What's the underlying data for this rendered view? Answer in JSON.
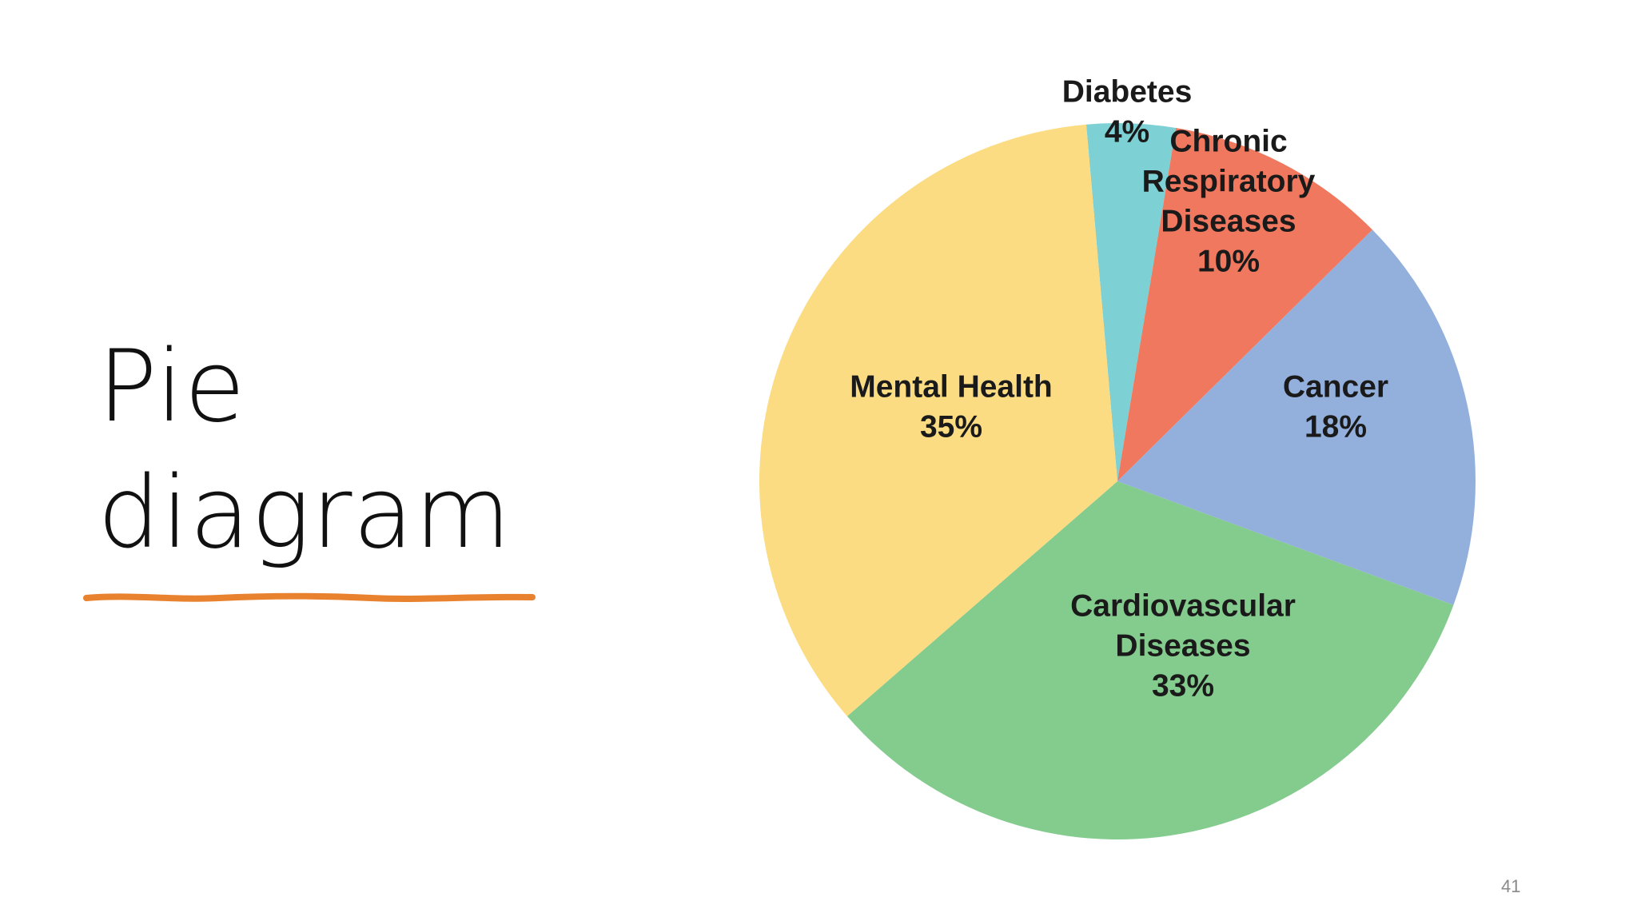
{
  "slide": {
    "title_line1": "Pie",
    "title_line2": "diagram",
    "page_number": "41",
    "accent_color": "#E9822E"
  },
  "chart_data": {
    "type": "pie",
    "title": "",
    "legend": "none",
    "start_angle_deg": -5,
    "direction": "clockwise",
    "slices": [
      {
        "label_lines": [
          "Diabetes"
        ],
        "pct_text": "4%",
        "value": 4,
        "color": "#7DD0D3"
      },
      {
        "label_lines": [
          "Chronic",
          "Respiratory",
          "Diseases"
        ],
        "pct_text": "10%",
        "value": 10,
        "color": "#F0785F"
      },
      {
        "label_lines": [
          "Cancer"
        ],
        "pct_text": "18%",
        "value": 18,
        "color": "#93B0DC"
      },
      {
        "label_lines": [
          "Cardiovascular",
          "Diseases"
        ],
        "pct_text": "33%",
        "value": 33,
        "color": "#84CB8E"
      },
      {
        "label_lines": [
          "Mental Health"
        ],
        "pct_text": "35%",
        "value": 35,
        "color": "#FBDC82"
      }
    ]
  }
}
